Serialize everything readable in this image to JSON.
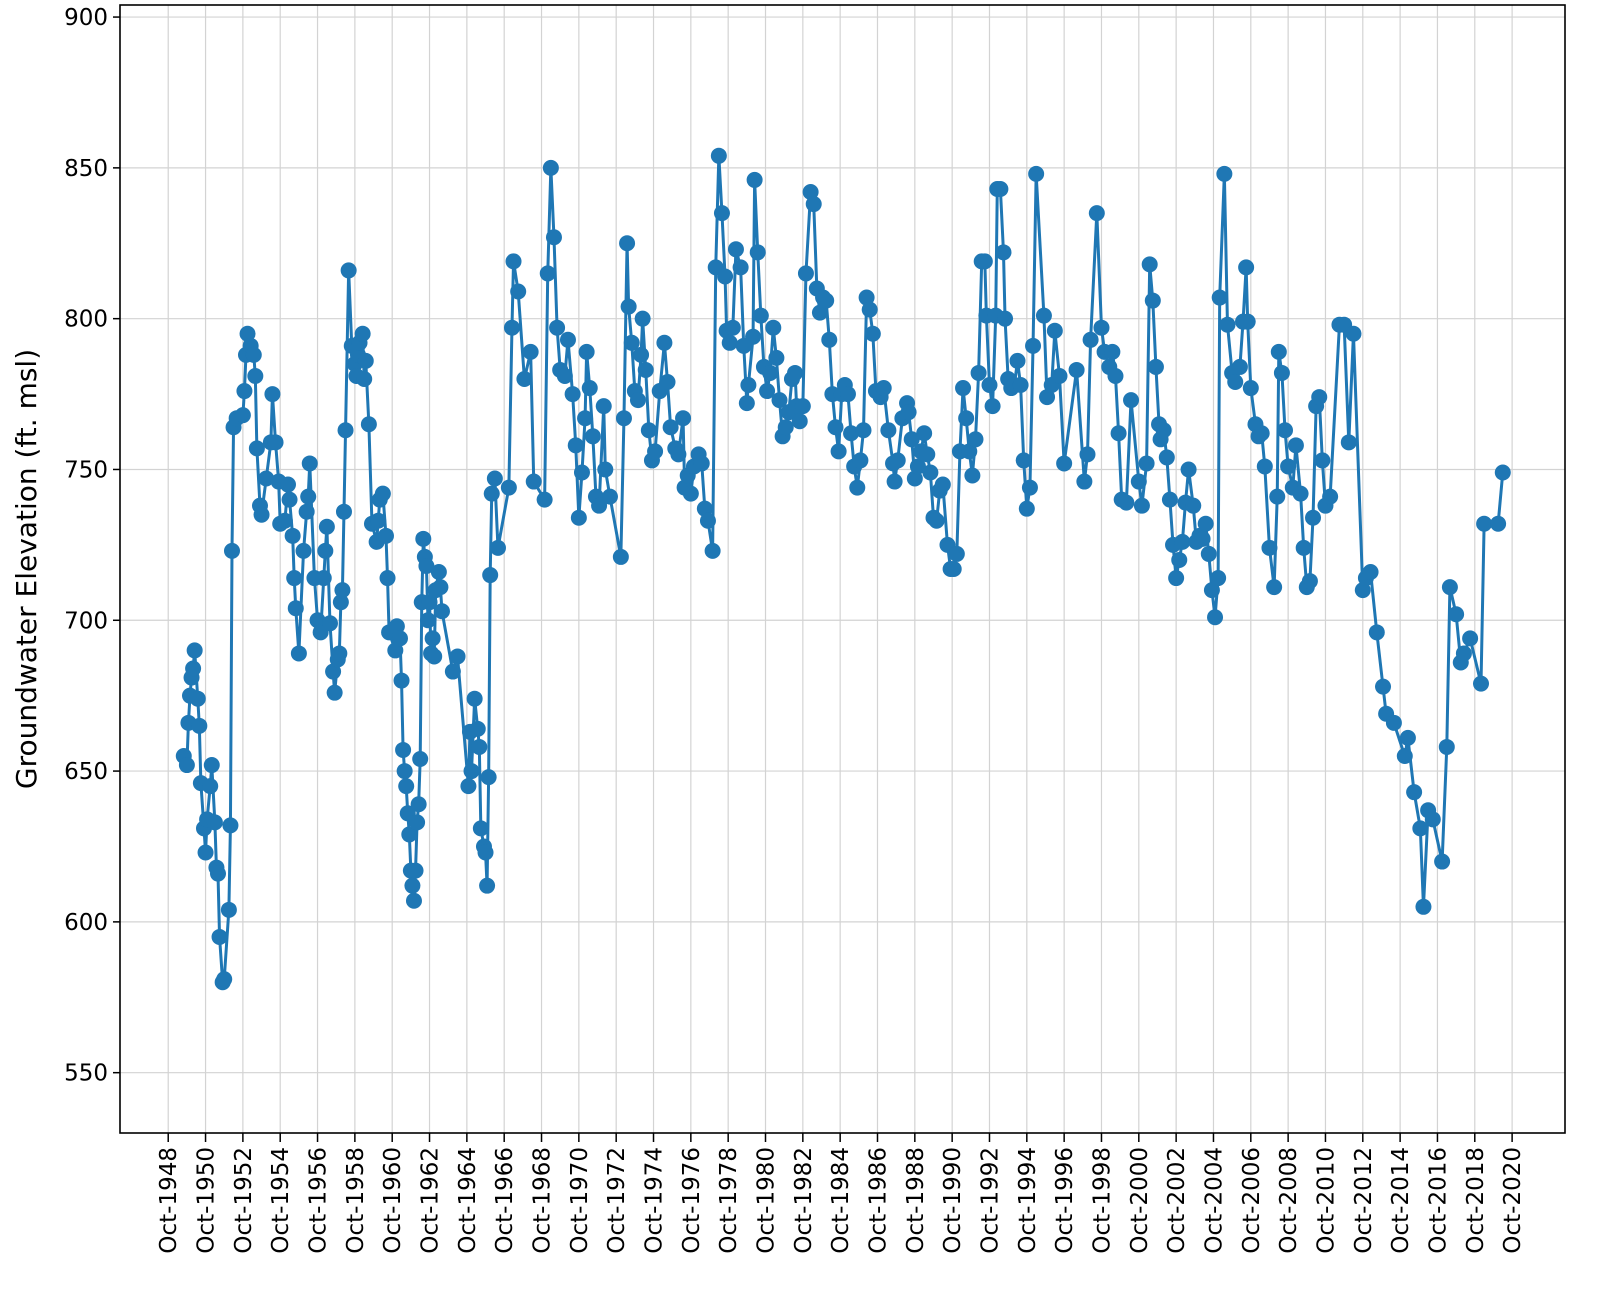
{
  "chart_data": {
    "type": "line",
    "ylabel": "Groundwater Elevation (ft. msl)",
    "color": "#1f77b4",
    "grid": true,
    "xlim": [
      "1946-03",
      "2023-08"
    ],
    "ylim": [
      530,
      904
    ],
    "yticks": [
      550,
      600,
      650,
      700,
      750,
      800,
      850,
      900
    ],
    "xticks": [
      {
        "value": "1948-10",
        "label": "Oct-1948"
      },
      {
        "value": "1950-10",
        "label": "Oct-1950"
      },
      {
        "value": "1952-10",
        "label": "Oct-1952"
      },
      {
        "value": "1954-10",
        "label": "Oct-1954"
      },
      {
        "value": "1956-10",
        "label": "Oct-1956"
      },
      {
        "value": "1958-10",
        "label": "Oct-1958"
      },
      {
        "value": "1960-10",
        "label": "Oct-1960"
      },
      {
        "value": "1962-10",
        "label": "Oct-1962"
      },
      {
        "value": "1964-10",
        "label": "Oct-1964"
      },
      {
        "value": "1966-10",
        "label": "Oct-1966"
      },
      {
        "value": "1968-10",
        "label": "Oct-1968"
      },
      {
        "value": "1970-10",
        "label": "Oct-1970"
      },
      {
        "value": "1972-10",
        "label": "Oct-1972"
      },
      {
        "value": "1974-10",
        "label": "Oct-1974"
      },
      {
        "value": "1976-10",
        "label": "Oct-1976"
      },
      {
        "value": "1978-10",
        "label": "Oct-1978"
      },
      {
        "value": "1980-10",
        "label": "Oct-1980"
      },
      {
        "value": "1982-10",
        "label": "Oct-1982"
      },
      {
        "value": "1984-10",
        "label": "Oct-1984"
      },
      {
        "value": "1986-10",
        "label": "Oct-1986"
      },
      {
        "value": "1988-10",
        "label": "Oct-1988"
      },
      {
        "value": "1990-10",
        "label": "Oct-1990"
      },
      {
        "value": "1992-10",
        "label": "Oct-1992"
      },
      {
        "value": "1994-10",
        "label": "Oct-1994"
      },
      {
        "value": "1996-10",
        "label": "Oct-1996"
      },
      {
        "value": "1998-10",
        "label": "Oct-1998"
      },
      {
        "value": "2000-10",
        "label": "Oct-2000"
      },
      {
        "value": "2002-10",
        "label": "Oct-2002"
      },
      {
        "value": "2004-10",
        "label": "Oct-2004"
      },
      {
        "value": "2006-10",
        "label": "Oct-2006"
      },
      {
        "value": "2008-10",
        "label": "Oct-2008"
      },
      {
        "value": "2010-10",
        "label": "Oct-2010"
      },
      {
        "value": "2012-10",
        "label": "Oct-2012"
      },
      {
        "value": "2014-10",
        "label": "Oct-2014"
      },
      {
        "value": "2016-10",
        "label": "Oct-2016"
      },
      {
        "value": "2018-10",
        "label": "Oct-2018"
      },
      {
        "value": "2020-10",
        "label": "Oct-2020"
      }
    ],
    "x": [
      "1949-08",
      "1949-10",
      "1949-11",
      "1949-12",
      "1950-01",
      "1950-02",
      "1950-03",
      "1950-05",
      "1950-06",
      "1950-07",
      "1950-09",
      "1950-10",
      "1950-11",
      "1951-01",
      "1951-02",
      "1951-04",
      "1951-05",
      "1951-06",
      "1951-07",
      "1951-09",
      "1951-10",
      "1952-01",
      "1952-02",
      "1952-03",
      "1952-04",
      "1952-06",
      "1952-10",
      "1952-11",
      "1952-12",
      "1953-01",
      "1953-03",
      "1953-05",
      "1953-06",
      "1953-07",
      "1953-09",
      "1953-10",
      "1954-01",
      "1954-04",
      "1954-05",
      "1954-07",
      "1954-09",
      "1954-10",
      "1955-01",
      "1955-03",
      "1955-04",
      "1955-06",
      "1955-07",
      "1955-08",
      "1955-10",
      "1956-01",
      "1956-03",
      "1956-04",
      "1956-05",
      "1956-08",
      "1956-10",
      "1956-12",
      "1957-02",
      "1957-03",
      "1957-04",
      "1957-06",
      "1957-08",
      "1957-09",
      "1957-11",
      "1957-12",
      "1958-01",
      "1958-02",
      "1958-03",
      "1958-04",
      "1958-06",
      "1958-08",
      "1958-10",
      "1958-11",
      "1958-12",
      "1959-01",
      "1959-03",
      "1959-04",
      "1959-05",
      "1959-07",
      "1959-09",
      "1959-12",
      "1960-01",
      "1960-02",
      "1960-04",
      "1960-06",
      "1960-07",
      "1960-08",
      "1960-12",
      "1961-01",
      "1961-03",
      "1961-04",
      "1961-05",
      "1961-06",
      "1961-07",
      "1961-08",
      "1961-09",
      "1961-10",
      "1961-11",
      "1961-12",
      "1962-01",
      "1962-02",
      "1962-03",
      "1962-04",
      "1962-05",
      "1962-06",
      "1962-07",
      "1962-08",
      "1962-09",
      "1962-10",
      "1962-11",
      "1962-12",
      "1963-01",
      "1963-02",
      "1963-04",
      "1963-05",
      "1963-06",
      "1964-01",
      "1964-04",
      "1964-11",
      "1964-12",
      "1965-01",
      "1965-03",
      "1965-05",
      "1965-06",
      "1965-07",
      "1965-09",
      "1965-10",
      "1965-11",
      "1965-12",
      "1966-01",
      "1966-02",
      "1966-04",
      "1966-06",
      "1967-01",
      "1967-03",
      "1967-04",
      "1967-07",
      "1967-11",
      "1968-03",
      "1968-05",
      "1968-12",
      "1969-02",
      "1969-04",
      "1969-06",
      "1969-08",
      "1969-10",
      "1970-01",
      "1970-03",
      "1970-06",
      "1970-08",
      "1970-10",
      "1970-12",
      "1971-02",
      "1971-03",
      "1971-05",
      "1971-07",
      "1971-09",
      "1971-11",
      "1972-02",
      "1972-03",
      "1972-06",
      "1973-01",
      "1973-03",
      "1973-05",
      "1973-06",
      "1973-08",
      "1973-10",
      "1973-12",
      "1974-02",
      "1974-03",
      "1974-05",
      "1974-07",
      "1974-09",
      "1974-11",
      "1975-02",
      "1975-05",
      "1975-07",
      "1975-09",
      "1975-12",
      "1976-02",
      "1976-05",
      "1976-06",
      "1976-08",
      "1976-10",
      "1976-12",
      "1977-03",
      "1977-05",
      "1977-07",
      "1977-09",
      "1977-12",
      "1978-02",
      "1978-04",
      "1978-06",
      "1978-08",
      "1978-09",
      "1978-11",
      "1979-01",
      "1979-03",
      "1979-06",
      "1979-08",
      "1979-10",
      "1979-11",
      "1980-02",
      "1980-03",
      "1980-05",
      "1980-07",
      "1980-09",
      "1980-11",
      "1981-01",
      "1981-03",
      "1981-05",
      "1981-07",
      "1981-09",
      "1981-11",
      "1982-01",
      "1982-03",
      "1982-05",
      "1982-06",
      "1982-08",
      "1982-10",
      "1982-12",
      "1983-03",
      "1983-05",
      "1983-07",
      "1983-09",
      "1983-11",
      "1984-01",
      "1984-03",
      "1984-05",
      "1984-07",
      "1984-09",
      "1984-11",
      "1985-01",
      "1985-03",
      "1985-05",
      "1985-07",
      "1985-09",
      "1985-11",
      "1986-01",
      "1986-03",
      "1986-05",
      "1986-07",
      "1986-09",
      "1986-12",
      "1987-02",
      "1987-05",
      "1987-08",
      "1987-09",
      "1987-11",
      "1988-02",
      "1988-05",
      "1988-06",
      "1988-08",
      "1988-10",
      "1988-12",
      "1989-02",
      "1989-04",
      "1989-06",
      "1989-08",
      "1989-10",
      "1989-12",
      "1990-02",
      "1990-04",
      "1990-07",
      "1990-09",
      "1990-11",
      "1991-01",
      "1991-03",
      "1991-05",
      "1991-07",
      "1991-09",
      "1991-11",
      "1992-01",
      "1992-03",
      "1992-05",
      "1992-07",
      "1992-08",
      "1992-10",
      "1992-12",
      "1993-02",
      "1993-03",
      "1993-05",
      "1993-07",
      "1993-08",
      "1993-10",
      "1993-12",
      "1994-02",
      "1994-04",
      "1994-06",
      "1994-08",
      "1994-10",
      "1994-12",
      "1995-02",
      "1995-04",
      "1995-09",
      "1995-11",
      "1996-02",
      "1996-04",
      "1996-07",
      "1996-10",
      "1997-06",
      "1997-11",
      "1998-01",
      "1998-03",
      "1998-07",
      "1998-10",
      "1998-12",
      "1999-03",
      "1999-05",
      "1999-07",
      "1999-09",
      "1999-11",
      "2000-02",
      "2000-05",
      "2000-10",
      "2000-12",
      "2001-03",
      "2001-05",
      "2001-07",
      "2001-09",
      "2001-11",
      "2001-12",
      "2002-02",
      "2002-04",
      "2002-06",
      "2002-08",
      "2002-10",
      "2002-12",
      "2003-02",
      "2003-04",
      "2003-06",
      "2003-09",
      "2003-11",
      "2004-01",
      "2004-03",
      "2004-05",
      "2004-07",
      "2004-09",
      "2004-11",
      "2005-01",
      "2005-02",
      "2005-05",
      "2005-07",
      "2005-10",
      "2005-12",
      "2006-03",
      "2006-05",
      "2006-07",
      "2006-08",
      "2006-10",
      "2007-01",
      "2007-03",
      "2007-05",
      "2007-07",
      "2007-10",
      "2008-01",
      "2008-03",
      "2008-04",
      "2008-06",
      "2008-08",
      "2008-10",
      "2009-01",
      "2009-03",
      "2009-06",
      "2009-08",
      "2009-10",
      "2009-12",
      "2010-02",
      "2010-04",
      "2010-06",
      "2010-08",
      "2010-10",
      "2011-01",
      "2011-07",
      "2011-10",
      "2012-01",
      "2012-04",
      "2012-10",
      "2012-12",
      "2013-03",
      "2013-07",
      "2013-11",
      "2014-01",
      "2014-06",
      "2015-01",
      "2015-03",
      "2015-07",
      "2015-11",
      "2016-01",
      "2016-04",
      "2016-07",
      "2017-01",
      "2017-04",
      "2017-06",
      "2017-10",
      "2018-01",
      "2018-03",
      "2018-07",
      "2019-02",
      "2019-04",
      "2020-01",
      "2020-04"
    ],
    "values": [
      655,
      652,
      666,
      675,
      681,
      684,
      690,
      674,
      665,
      646,
      631,
      623,
      634,
      645,
      652,
      633,
      618,
      616,
      595,
      580,
      581,
      604,
      632,
      723,
      764,
      767,
      768,
      776,
      788,
      795,
      791,
      788,
      781,
      757,
      738,
      735,
      747,
      759,
      775,
      759,
      746,
      732,
      733,
      745,
      740,
      728,
      714,
      704,
      689,
      723,
      736,
      741,
      752,
      714,
      700,
      696,
      714,
      723,
      731,
      699,
      683,
      676,
      687,
      689,
      706,
      710,
      736,
      763,
      816,
      791,
      785,
      781,
      788,
      792,
      795,
      780,
      786,
      765,
      732,
      726,
      733,
      740,
      742,
      728,
      714,
      696,
      690,
      698,
      694,
      680,
      657,
      650,
      645,
      636,
      629,
      617,
      612,
      607,
      617,
      633,
      639,
      654,
      706,
      727,
      721,
      718,
      700,
      706,
      689,
      694,
      688,
      710,
      716,
      711,
      703,
      683,
      688,
      645,
      663,
      650,
      674,
      664,
      658,
      631,
      625,
      623,
      612,
      648,
      715,
      742,
      747,
      724,
      744,
      797,
      819,
      809,
      780,
      789,
      746,
      740,
      815,
      850,
      827,
      797,
      783,
      781,
      793,
      775,
      758,
      734,
      749,
      767,
      789,
      777,
      761,
      741,
      738,
      771,
      750,
      741,
      721,
      767,
      825,
      804,
      792,
      776,
      773,
      788,
      800,
      783,
      763,
      753,
      756,
      776,
      792,
      779,
      764,
      757,
      755,
      767,
      744,
      748,
      742,
      751,
      755,
      752,
      737,
      733,
      723,
      817,
      854,
      835,
      814,
      796,
      792,
      797,
      823,
      817,
      791,
      772,
      778,
      794,
      846,
      822,
      801,
      784,
      776,
      782,
      797,
      787,
      773,
      761,
      764,
      769,
      780,
      782,
      771,
      766,
      771,
      815,
      842,
      838,
      810,
      802,
      807,
      806,
      793,
      775,
      764,
      756,
      775,
      778,
      775,
      762,
      751,
      744,
      753,
      763,
      807,
      803,
      795,
      776,
      774,
      777,
      763,
      752,
      746,
      753,
      767,
      772,
      769,
      760,
      747,
      751,
      756,
      762,
      755,
      749,
      734,
      733,
      743,
      745,
      725,
      717,
      717,
      722,
      756,
      777,
      767,
      756,
      748,
      760,
      782,
      819,
      819,
      801,
      778,
      771,
      801,
      843,
      843,
      822,
      800,
      780,
      777,
      778,
      786,
      778,
      753,
      737,
      744,
      791,
      848,
      801,
      774,
      778,
      796,
      781,
      752,
      783,
      746,
      755,
      793,
      835,
      797,
      789,
      784,
      789,
      781,
      762,
      740,
      739,
      773,
      746,
      738,
      752,
      818,
      806,
      784,
      765,
      760,
      763,
      754,
      740,
      725,
      714,
      720,
      726,
      739,
      750,
      738,
      726,
      728,
      727,
      732,
      722,
      710,
      701,
      714,
      807,
      848,
      798,
      782,
      779,
      784,
      799,
      817,
      799,
      777,
      765,
      761,
      762,
      751,
      724,
      711,
      741,
      789,
      782,
      763,
      751,
      744,
      758,
      742,
      724,
      711,
      713,
      734,
      771,
      774,
      753,
      738,
      741,
      798,
      798,
      759,
      795,
      710,
      714,
      716,
      696,
      678,
      669,
      666,
      655,
      661,
      643,
      631,
      605,
      637,
      634,
      620,
      658,
      711,
      702,
      686,
      689,
      694,
      679,
      732,
      732,
      749
    ]
  }
}
